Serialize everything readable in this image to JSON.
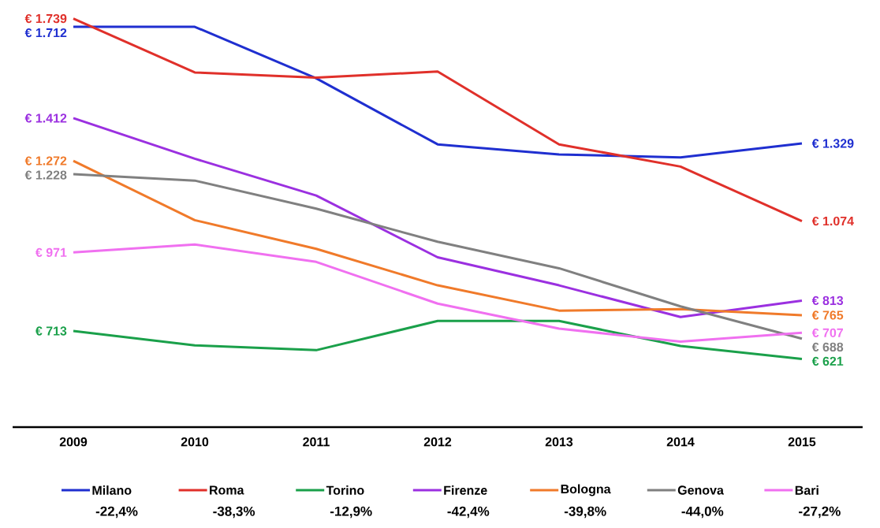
{
  "chart_data": {
    "type": "line",
    "categories": [
      "2009",
      "2010",
      "2011",
      "2012",
      "2013",
      "2014",
      "2015"
    ],
    "legend": "bottom",
    "line_style": "solid",
    "series": [
      {
        "name": "Milano",
        "color": "#1f2fd0",
        "values": [
          1712,
          1712,
          1543,
          1326,
          1293,
          1283,
          1329
        ],
        "value_labels": [
          "€ 1.712",
          null,
          null,
          null,
          null,
          null,
          "€ 1.329"
        ]
      },
      {
        "name": "Roma",
        "color": "#e0302a",
        "values": [
          1739,
          1562,
          1545,
          1565,
          1326,
          1253,
          1074
        ],
        "value_labels": [
          "€ 1.739",
          null,
          null,
          null,
          null,
          null,
          "€ 1.074"
        ]
      },
      {
        "name": "Torino",
        "color": "#1aa04a",
        "values": [
          713,
          666,
          650,
          746,
          746,
          664,
          621
        ],
        "value_labels": [
          "€ 713",
          null,
          null,
          null,
          null,
          null,
          "€ 621"
        ]
      },
      {
        "name": "Firenze",
        "color": "#9b30e0",
        "values": [
          1412,
          1279,
          1158,
          955,
          863,
          759,
          813
        ],
        "value_labels": [
          "€ 1.412",
          null,
          null,
          null,
          null,
          null,
          "€ 813"
        ]
      },
      {
        "name": "Bologna",
        "color": "#f07a2a",
        "values": [
          1272,
          1077,
          983,
          863,
          780,
          785,
          765
        ],
        "value_labels": [
          "€ 1.272",
          null,
          null,
          null,
          null,
          null,
          "€ 765"
        ]
      },
      {
        "name": "Genova",
        "color": "#808080",
        "values": [
          1228,
          1207,
          1115,
          1006,
          919,
          794,
          688
        ],
        "value_labels": [
          "€ 1.228",
          null,
          null,
          null,
          null,
          null,
          "€ 688"
        ]
      },
      {
        "name": "Bari",
        "color": "#f070f0",
        "values": [
          971,
          997,
          940,
          803,
          721,
          678,
          707
        ],
        "value_labels": [
          "€ 971",
          null,
          null,
          null,
          null,
          null,
          "€ 707"
        ]
      }
    ],
    "annotations": [
      "-22,4%",
      "-38,3%",
      "-12,9%",
      "-42,4%",
      "-39,8%",
      "-44,0%",
      "-27,2%"
    ]
  }
}
